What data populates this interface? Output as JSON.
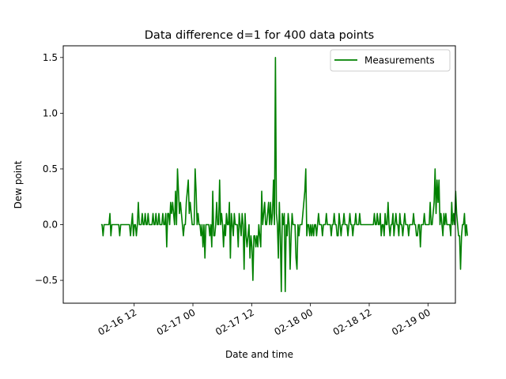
{
  "chart_data": {
    "type": "line",
    "title": "Data difference d=1 for 400 data points",
    "xlabel": "Date and time",
    "ylabel": "Dew point",
    "x_tick_labels": [
      "02-16 12",
      "02-17 00",
      "02-17 12",
      "02-18 00",
      "02-18 12",
      "02-19 00"
    ],
    "y_tick_labels": [
      "1.5",
      "1.0",
      "0.5",
      "0.0",
      "−0.5"
    ],
    "x_ticks_hours": [
      12,
      24,
      36,
      48,
      60,
      72
    ],
    "y_ticks": [
      1.5,
      1.0,
      0.5,
      0.0,
      -0.5
    ],
    "xlim_hours": [
      -2.48,
      77.6
    ],
    "ylim": [
      -0.705,
      1.605
    ],
    "x_start_hours": 5.25,
    "x_step_hours": 0.2,
    "grid": false,
    "legend_position": "top-right",
    "series": [
      {
        "name": "Measurements",
        "color": "#008000",
        "values": [
          0.0,
          0.0,
          -0.1,
          0.0,
          0.0,
          0.0,
          0.0,
          0.0,
          0.0,
          0.1,
          -0.1,
          0.0,
          0.0,
          0.0,
          0.0,
          0.0,
          0.0,
          0.0,
          0.0,
          -0.1,
          0.0,
          0.0,
          0.0,
          0.0,
          0.0,
          0.0,
          0.0,
          0.0,
          0.0,
          0.0,
          -0.1,
          0.0,
          0.1,
          -0.1,
          0.0,
          0.0,
          -0.1,
          0.0,
          0.2,
          0.0,
          0.0,
          0.0,
          0.1,
          0.0,
          0.0,
          0.1,
          0.0,
          0.0,
          0.1,
          0.0,
          0.0,
          0.0,
          0.0,
          0.1,
          0.0,
          0.0,
          0.1,
          0.0,
          0.0,
          0.1,
          0.0,
          0.0,
          0.0,
          0.1,
          0.0,
          0.0,
          0.1,
          -0.2,
          0.1,
          0.1,
          0.0,
          0.2,
          0.1,
          0.2,
          0.1,
          0.0,
          0.3,
          0.0,
          0.5,
          0.3,
          0.1,
          0.2,
          0.1,
          0.0,
          -0.1,
          0.0,
          0.0,
          0.2,
          0.3,
          0.4,
          0.1,
          0.2,
          0.1,
          0.0,
          0.0,
          0.0,
          0.5,
          0.3,
          0.0,
          0.1,
          0.0,
          0.0,
          -0.1,
          0.0,
          -0.2,
          0.0,
          -0.3,
          0.0,
          0.0,
          0.0,
          0.0,
          -0.1,
          0.0,
          -0.2,
          0.3,
          -0.1,
          -0.1,
          0.0,
          0.2,
          0.0,
          0.0,
          0.4,
          0.0,
          0.1,
          0.0,
          -0.2,
          0.0,
          -0.1,
          0.1,
          0.0,
          0.0,
          0.2,
          -0.3,
          0.1,
          0.0,
          -0.1,
          0.1,
          0.0,
          0.0,
          0.0,
          -0.2,
          0.1,
          0.0,
          -0.1,
          0.1,
          0.0,
          -0.4,
          0.1,
          -0.1,
          -0.2,
          -0.1,
          0.0,
          -0.3,
          -0.1,
          -0.2,
          -0.5,
          -0.1,
          -0.1,
          -0.2,
          -0.1,
          -0.2,
          0.0,
          -0.1,
          -0.2,
          0.3,
          0.0,
          0.1,
          0.2,
          0.0,
          0.0,
          0.1,
          0.2,
          0.0,
          0.2,
          0.0,
          0.1,
          0.4,
          0.0,
          1.5,
          0.1,
          0.0,
          -0.3,
          0.2,
          -0.1,
          -0.6,
          0.1,
          0.0,
          0.1,
          -0.6,
          0.0,
          -0.1,
          0.1,
          0.0,
          -0.4,
          -0.1,
          0.1,
          0.0,
          0.0,
          0.0,
          -0.3,
          -0.4,
          0.0,
          -0.1,
          0.0,
          0.0,
          0.0,
          0.1,
          0.2,
          0.3,
          0.5,
          -0.1,
          0.0,
          0.0,
          -0.1,
          0.0,
          -0.1,
          0.0,
          -0.1,
          0.0,
          0.0,
          -0.1,
          0.0,
          0.1,
          0.0,
          0.0,
          0.0,
          -0.1,
          0.0,
          0.0,
          0.0,
          0.1,
          0.0,
          0.0,
          0.0,
          0.0,
          -0.1,
          0.0,
          0.0,
          0.1,
          0.0,
          0.0,
          -0.1,
          -0.1,
          0.1,
          0.0,
          -0.1,
          0.0,
          0.0,
          0.1,
          0.0,
          0.0,
          0.0,
          -0.1,
          0.0,
          0.1,
          0.0,
          0.0,
          -0.1,
          0.0,
          0.0,
          0.1,
          0.0,
          0.0,
          0.0,
          0.1,
          0.0,
          0.0,
          0.0,
          0.0,
          0.0,
          0.0,
          0.0,
          0.0,
          0.0,
          0.0,
          0.0,
          0.0,
          0.0,
          0.0,
          0.1,
          0.0,
          0.0,
          0.1,
          0.0,
          0.0,
          0.1,
          -0.1,
          0.0,
          0.0,
          -0.1,
          0.1,
          0.0,
          0.0,
          0.2,
          0.0,
          -0.1,
          0.0,
          0.0,
          0.1,
          -0.1,
          0.0,
          0.1,
          0.0,
          0.0,
          -0.1,
          0.1,
          0.0,
          0.0,
          -0.1,
          0.0,
          0.1,
          0.0,
          0.0,
          0.0,
          -0.1,
          0.0,
          0.0,
          0.0,
          0.0,
          0.1,
          0.0,
          0.0,
          -0.1,
          -0.1,
          0.0,
          0.0,
          -0.2,
          0.0,
          0.0,
          0.0,
          0.1,
          0.0,
          0.0,
          0.0,
          0.0,
          0.0,
          0.2,
          0.0,
          0.0,
          0.1,
          0.2,
          0.5,
          0.1,
          0.4,
          0.2,
          0.4,
          0.0,
          0.1,
          0.0,
          -0.1,
          0.1,
          0.0,
          0.1,
          0.0,
          0.0,
          0.0,
          0.0,
          -0.1,
          0.2,
          0.0,
          0.1,
          0.0,
          0.3,
          0.1,
          0.0,
          -0.1,
          -0.1,
          -0.4,
          -0.1,
          0.0,
          0.0,
          0.1,
          -0.1,
          0.0,
          -0.1
        ]
      }
    ]
  }
}
